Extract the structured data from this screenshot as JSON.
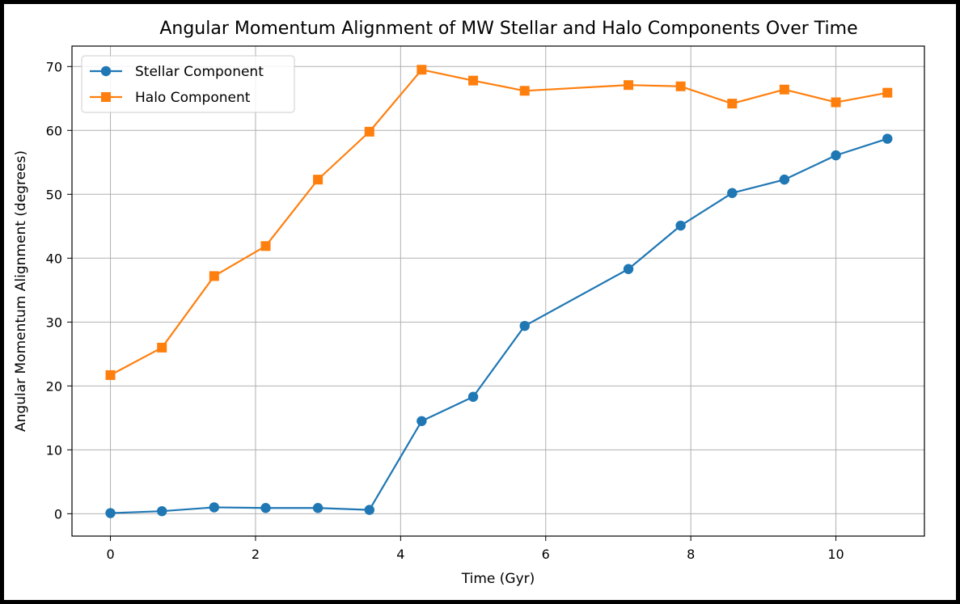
{
  "chart_data": {
    "type": "line",
    "title": "Angular Momentum Alignment of MW Stellar and Halo Components Over Time",
    "xlabel": "Time (Gyr)",
    "ylabel": "Angular Momentum Alignment (degrees)",
    "xlim": [
      -0.53,
      11.22
    ],
    "ylim": [
      -3.5,
      73.2
    ],
    "xticks": [
      0,
      2,
      4,
      6,
      8,
      10
    ],
    "yticks": [
      0,
      10,
      20,
      30,
      40,
      50,
      60,
      70
    ],
    "grid": true,
    "legend_position": "top-left",
    "x": [
      0,
      0.71,
      1.43,
      2.14,
      2.86,
      3.57,
      4.29,
      5.0,
      5.71,
      7.14,
      7.86,
      8.57,
      9.29,
      10.0,
      10.71
    ],
    "series": [
      {
        "name": "Stellar Component",
        "marker": "circle",
        "color": "#1f77b4",
        "x": [
          0,
          0.71,
          1.43,
          2.14,
          2.86,
          3.57,
          4.29,
          5.0,
          5.71,
          7.14,
          7.86,
          8.57,
          9.29,
          10.0,
          10.71
        ],
        "values": [
          0.1,
          0.4,
          1.0,
          0.9,
          0.9,
          0.6,
          14.5,
          18.3,
          29.4,
          38.3,
          45.1,
          50.2,
          52.3,
          56.1,
          58.7
        ]
      },
      {
        "name": "Halo Component",
        "marker": "square",
        "color": "#ff7f0e",
        "x": [
          0,
          0.71,
          1.43,
          2.14,
          2.86,
          3.57,
          4.29,
          5.0,
          5.71,
          7.14,
          7.86,
          8.57,
          9.29,
          10.0,
          10.71
        ],
        "values": [
          21.7,
          26.0,
          37.2,
          41.9,
          52.3,
          59.8,
          69.5,
          67.8,
          66.2,
          67.1,
          66.9,
          64.2,
          66.4,
          64.4,
          65.9
        ]
      }
    ]
  }
}
